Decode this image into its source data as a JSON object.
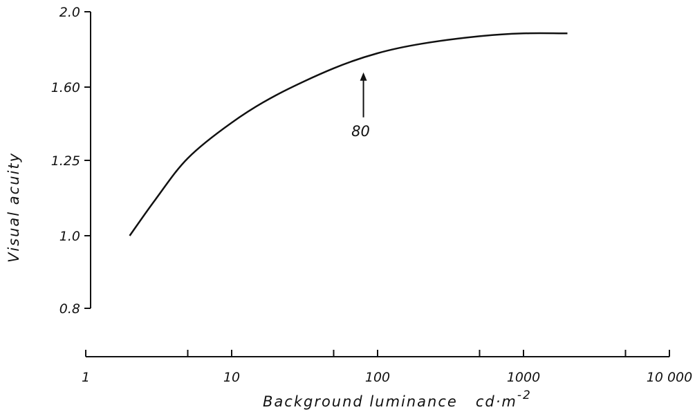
{
  "chart_data": {
    "type": "line",
    "title": "",
    "xlabel": "Background luminance",
    "xunit_base": "cd·m",
    "xunit_exp": "-2",
    "ylabel": "Visual acuity",
    "x_scale": "log",
    "xlim": [
      1,
      10000
    ],
    "x_ticks": [
      {
        "value": 1,
        "label": "1"
      },
      {
        "value": 10,
        "label": "10"
      },
      {
        "value": 100,
        "label": "100"
      },
      {
        "value": 1000,
        "label": "1000"
      },
      {
        "value": 10000,
        "label": "10 000"
      }
    ],
    "x_minor_ticks": [
      5,
      50,
      500,
      5000
    ],
    "y_ticks": [
      {
        "value": 0.8,
        "label": "0.8"
      },
      {
        "value": 1.0,
        "label": "1.0"
      },
      {
        "value": 1.25,
        "label": "1.25"
      },
      {
        "value": 1.6,
        "label": "1.60"
      },
      {
        "value": 2.0,
        "label": "2.0"
      }
    ],
    "series": [
      {
        "x": [
          2,
          3,
          5,
          10,
          20,
          50,
          100,
          200,
          500,
          1000,
          2000
        ],
        "y": [
          1.0,
          1.12,
          1.26,
          1.43,
          1.56,
          1.7,
          1.78,
          1.83,
          1.87,
          1.885,
          1.885
        ]
      }
    ],
    "annotations": [
      {
        "text": "80",
        "x": 80,
        "y": 1.7,
        "type": "arrow"
      }
    ],
    "grid": false,
    "legend": "none"
  }
}
